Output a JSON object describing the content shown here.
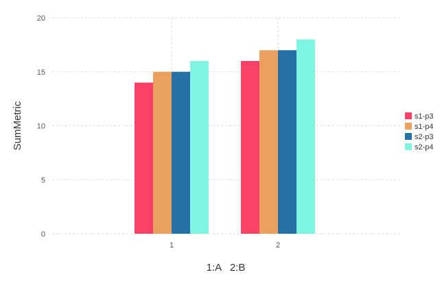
{
  "chart_data": {
    "type": "bar",
    "xlabel": "1:A   2:B",
    "ylabel": "SumMetric",
    "ylim": [
      0,
      20
    ],
    "yticks": [
      0,
      5,
      10,
      15,
      20
    ],
    "grid": true,
    "legend_position": "right",
    "categories": [
      "1",
      "2"
    ],
    "series": [
      {
        "name": "s1-p3",
        "color": "#fc4167",
        "values": [
          14,
          16
        ]
      },
      {
        "name": "s1-p4",
        "color": "#eba060",
        "values": [
          15,
          17
        ]
      },
      {
        "name": "s2-p3",
        "color": "#2570a5",
        "values": [
          15,
          17
        ]
      },
      {
        "name": "s2-p4",
        "color": "#7ff4e1",
        "values": [
          16,
          18
        ]
      }
    ]
  }
}
